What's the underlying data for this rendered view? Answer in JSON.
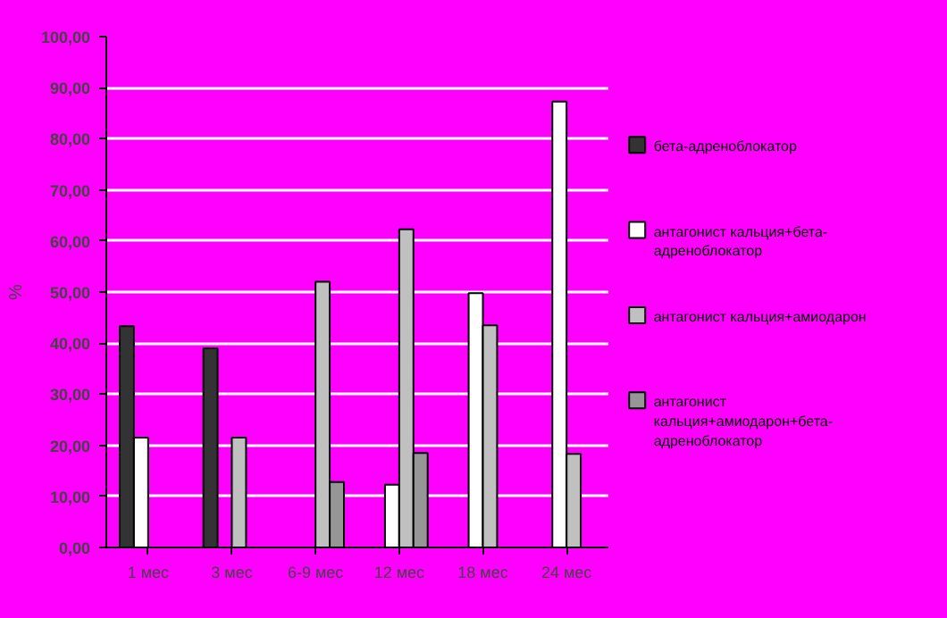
{
  "chart_data": {
    "type": "bar",
    "ylabel": "%",
    "categories": [
      "1 мес",
      "3 мес",
      "6-9 мес",
      "12 мес",
      "18 мес",
      "24 мес"
    ],
    "series": [
      {
        "name": "бета-адреноблокатор",
        "color": "#333333",
        "values": [
          43.3,
          39.0,
          null,
          null,
          null,
          null
        ]
      },
      {
        "name": "антагонист кальция+бета-адреноблокатор",
        "color": "#ffffff",
        "values": [
          21.5,
          null,
          null,
          12.3,
          49.8,
          87.3
        ]
      },
      {
        "name": "антагонист кальция+амиодарон",
        "color": "#c0c0c0",
        "values": [
          null,
          21.5,
          52.0,
          62.3,
          43.5,
          18.3
        ]
      },
      {
        "name": "антагонист кальция+амиодарон+бета-адреноблокатор",
        "color": "#969696",
        "values": [
          null,
          null,
          12.8,
          18.5,
          null,
          null
        ]
      }
    ],
    "ylim": [
      0,
      100
    ],
    "yticks": [
      {
        "value": 0,
        "label": "0,00"
      },
      {
        "value": 10,
        "label": "10,00"
      },
      {
        "value": 20,
        "label": "20,00"
      },
      {
        "value": 30,
        "label": "30,00"
      },
      {
        "value": 40,
        "label": "40,00"
      },
      {
        "value": 50,
        "label": "50,00"
      },
      {
        "value": 60,
        "label": "60,00"
      },
      {
        "value": 70,
        "label": "70,00"
      },
      {
        "value": 80,
        "label": "80,00"
      },
      {
        "value": 90,
        "label": "90,00"
      },
      {
        "value": 100,
        "label": "100,00"
      }
    ],
    "grid": "y",
    "legend": "right"
  }
}
